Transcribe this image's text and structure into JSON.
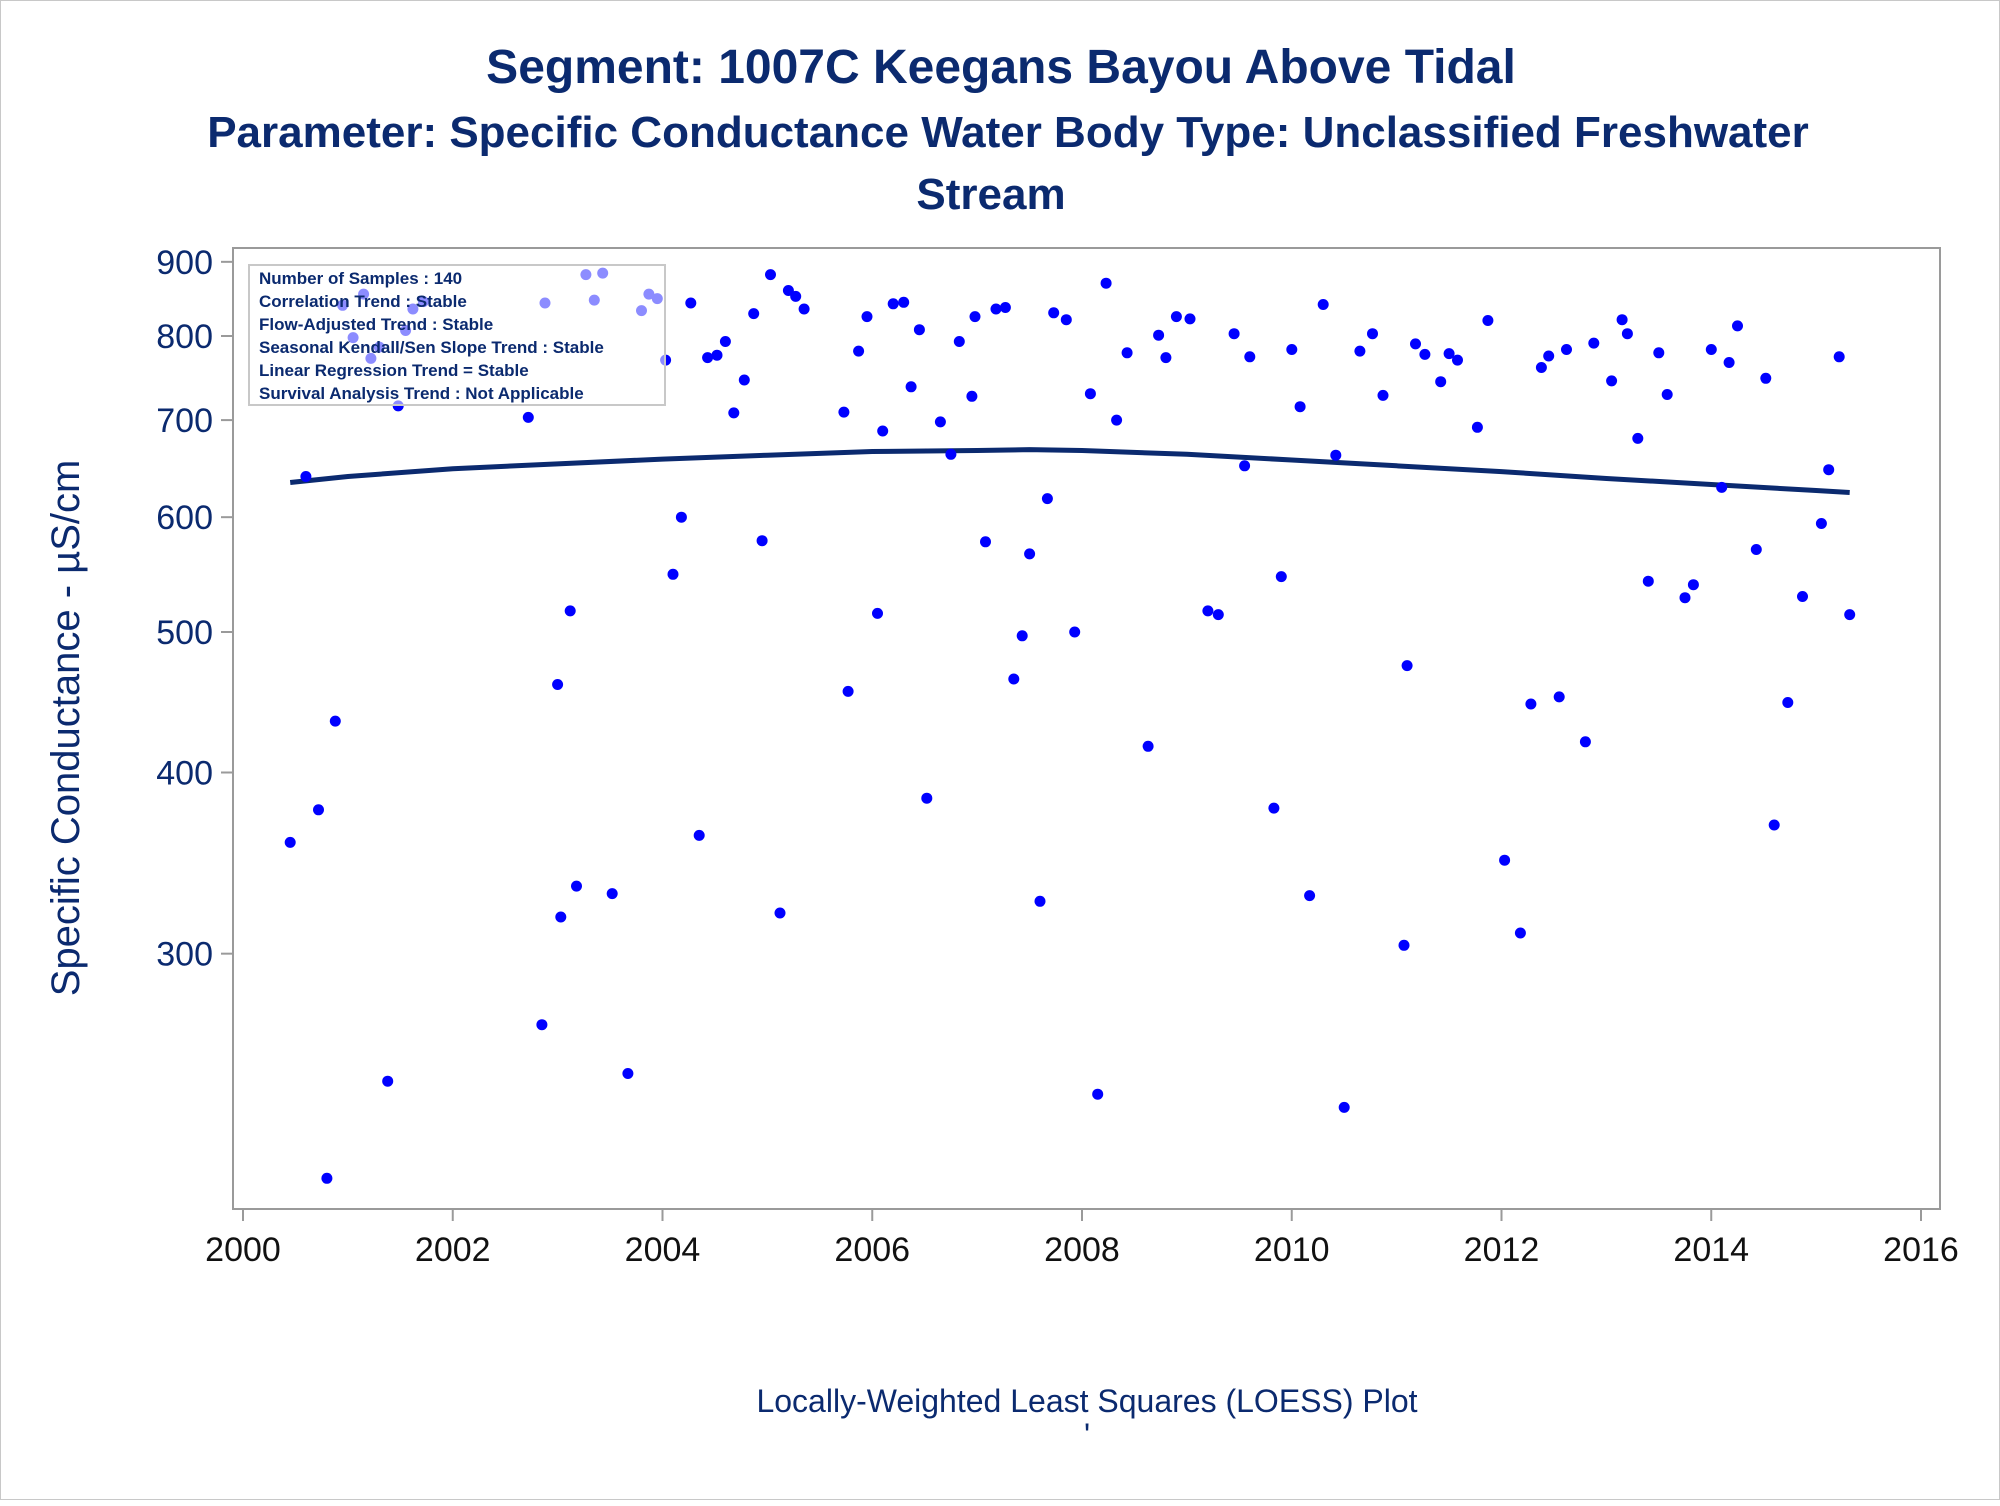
{
  "titles": {
    "line1": "Segment: 1007C  Keegans Bayou Above Tidal",
    "line2": "Parameter: Specific Conductance   Water Body Type: Unclassified Freshwater",
    "line3": "Stream"
  },
  "footnote": "Locally-Weighted Least Squares (LOESS) Plot",
  "footnote_mark": "'",
  "colors": {
    "title": "#0b2a6f",
    "points": "#0000ff",
    "loess": "#0b2a6f",
    "frame": "#9a9a9a"
  },
  "inset": {
    "lines": [
      "Number of Samples : 140",
      "Correlation Trend : Stable",
      "Flow-Adjusted Trend : Stable",
      "Seasonal Kendall/Sen Slope Trend : Stable",
      "Linear Regression Trend = Stable",
      "Survival Analysis Trend : Not Applicable"
    ]
  },
  "chart_data": {
    "type": "scatter",
    "title": "Segment: 1007C  Keegans Bayou Above Tidal",
    "xlabel": "",
    "ylabel": "Specific Conductance -  µS/cm",
    "xlim": [
      2000,
      2016
    ],
    "ylim": [
      200,
      920
    ],
    "yscale": "log",
    "x_ticks": [
      2000,
      2002,
      2004,
      2006,
      2008,
      2010,
      2012,
      2014,
      2016
    ],
    "x_tick_labels": [
      "2000",
      "2002",
      "2004",
      "2006",
      "2008",
      "2010",
      "2012",
      "2014",
      "2016"
    ],
    "y_ticks": [
      300,
      400,
      500,
      600,
      700,
      800,
      900
    ],
    "y_tick_labels": [
      "300",
      "400",
      "500",
      "600",
      "700",
      "800",
      "900"
    ],
    "grid": false,
    "legend": "none",
    "series": [
      {
        "type": "scatter",
        "points": [
          [
            2000.45,
            358
          ],
          [
            2000.6,
            640
          ],
          [
            2000.72,
            377
          ],
          [
            2000.8,
            210
          ],
          [
            2000.88,
            434
          ],
          [
            2000.95,
            840
          ],
          [
            2001.05,
            798
          ],
          [
            2001.15,
            855
          ],
          [
            2001.22,
            772
          ],
          [
            2001.3,
            786
          ],
          [
            2001.38,
            245
          ],
          [
            2001.48,
            716
          ],
          [
            2001.55,
            807
          ],
          [
            2001.62,
            835
          ],
          [
            2001.72,
            845
          ],
          [
            2002.72,
            703
          ],
          [
            2002.85,
            268
          ],
          [
            2002.88,
            843
          ],
          [
            2003.0,
            460
          ],
          [
            2003.03,
            318
          ],
          [
            2003.12,
            517
          ],
          [
            2003.18,
            334
          ],
          [
            2003.27,
            882
          ],
          [
            2003.35,
            847
          ],
          [
            2003.43,
            884
          ],
          [
            2003.52,
            330
          ],
          [
            2003.67,
            248
          ],
          [
            2003.8,
            833
          ],
          [
            2003.87,
            855
          ],
          [
            2003.95,
            849
          ],
          [
            2004.03,
            770
          ],
          [
            2004.1,
            548
          ],
          [
            2004.18,
            600
          ],
          [
            2004.27,
            843
          ],
          [
            2004.35,
            362
          ],
          [
            2004.43,
            773
          ],
          [
            2004.52,
            776
          ],
          [
            2004.6,
            793
          ],
          [
            2004.68,
            708
          ],
          [
            2004.78,
            746
          ],
          [
            2004.87,
            829
          ],
          [
            2004.95,
            578
          ],
          [
            2005.03,
            882
          ],
          [
            2005.12,
            320
          ],
          [
            2005.2,
            860
          ],
          [
            2005.27,
            852
          ],
          [
            2005.35,
            835
          ],
          [
            2005.73,
            709
          ],
          [
            2005.77,
            455
          ],
          [
            2005.87,
            781
          ],
          [
            2005.95,
            825
          ],
          [
            2006.05,
            515
          ],
          [
            2006.1,
            688
          ],
          [
            2006.2,
            842
          ],
          [
            2006.3,
            844
          ],
          [
            2006.37,
            738
          ],
          [
            2006.45,
            808
          ],
          [
            2006.52,
            384
          ],
          [
            2006.65,
            698
          ],
          [
            2006.75,
            663
          ],
          [
            2006.83,
            793
          ],
          [
            2006.95,
            727
          ],
          [
            2006.98,
            825
          ],
          [
            2007.08,
            577
          ],
          [
            2007.18,
            835
          ],
          [
            2007.27,
            837
          ],
          [
            2007.35,
            464
          ],
          [
            2007.43,
            497
          ],
          [
            2007.5,
            566
          ],
          [
            2007.6,
            326
          ],
          [
            2007.67,
            618
          ],
          [
            2007.73,
            830
          ],
          [
            2007.85,
            821
          ],
          [
            2007.93,
            500
          ],
          [
            2008.08,
            730
          ],
          [
            2008.15,
            240
          ],
          [
            2008.23,
            870
          ],
          [
            2008.33,
            700
          ],
          [
            2008.43,
            779
          ],
          [
            2008.63,
            417
          ],
          [
            2008.73,
            801
          ],
          [
            2008.8,
            773
          ],
          [
            2008.9,
            825
          ],
          [
            2009.03,
            822
          ],
          [
            2009.2,
            517
          ],
          [
            2009.3,
            514
          ],
          [
            2009.45,
            803
          ],
          [
            2009.55,
            651
          ],
          [
            2009.6,
            774
          ],
          [
            2009.83,
            378
          ],
          [
            2009.9,
            546
          ],
          [
            2010.0,
            783
          ],
          [
            2010.08,
            715
          ],
          [
            2010.17,
            329
          ],
          [
            2010.3,
            841
          ],
          [
            2010.42,
            662
          ],
          [
            2010.5,
            235
          ],
          [
            2010.65,
            781
          ],
          [
            2010.77,
            803
          ],
          [
            2010.87,
            728
          ],
          [
            2011.07,
            304
          ],
          [
            2011.1,
            474
          ],
          [
            2011.18,
            790
          ],
          [
            2011.27,
            777
          ],
          [
            2011.42,
            744
          ],
          [
            2011.5,
            778
          ],
          [
            2011.58,
            770
          ],
          [
            2011.77,
            692
          ],
          [
            2011.87,
            820
          ],
          [
            2012.03,
            348
          ],
          [
            2012.18,
            310
          ],
          [
            2012.28,
            446
          ],
          [
            2012.38,
            761
          ],
          [
            2012.45,
            775
          ],
          [
            2012.55,
            451
          ],
          [
            2012.62,
            783
          ],
          [
            2012.8,
            420
          ],
          [
            2012.88,
            791
          ],
          [
            2013.05,
            745
          ],
          [
            2013.15,
            821
          ],
          [
            2013.2,
            803
          ],
          [
            2013.3,
            680
          ],
          [
            2013.4,
            542
          ],
          [
            2013.5,
            779
          ],
          [
            2013.58,
            729
          ],
          [
            2013.75,
            528
          ],
          [
            2013.83,
            539
          ],
          [
            2014.0,
            783
          ],
          [
            2014.1,
            629
          ],
          [
            2014.17,
            767
          ],
          [
            2014.25,
            813
          ],
          [
            2014.43,
            570
          ],
          [
            2014.52,
            748
          ],
          [
            2014.6,
            368
          ],
          [
            2014.73,
            447
          ],
          [
            2014.87,
            529
          ],
          [
            2015.05,
            594
          ],
          [
            2015.12,
            647
          ],
          [
            2015.22,
            774
          ],
          [
            2015.32,
            514
          ]
        ]
      },
      {
        "type": "line",
        "points": [
          [
            2000.45,
            634
          ],
          [
            2001.0,
            640
          ],
          [
            2002.0,
            648
          ],
          [
            2003.0,
            653
          ],
          [
            2004.0,
            658
          ],
          [
            2005.0,
            662
          ],
          [
            2006.0,
            666
          ],
          [
            2007.0,
            667
          ],
          [
            2007.5,
            668
          ],
          [
            2008.0,
            667
          ],
          [
            2009.0,
            663
          ],
          [
            2010.0,
            657
          ],
          [
            2011.0,
            651
          ],
          [
            2012.0,
            645
          ],
          [
            2013.0,
            638
          ],
          [
            2014.0,
            632
          ],
          [
            2015.0,
            626
          ],
          [
            2015.32,
            624
          ]
        ]
      }
    ]
  }
}
